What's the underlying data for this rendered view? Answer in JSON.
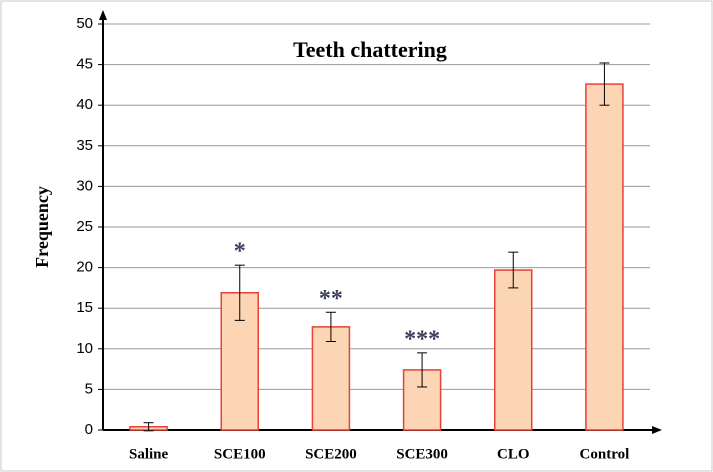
{
  "chart_data": {
    "type": "bar",
    "title": "Teeth chattering",
    "ylabel": "Frequency",
    "categories": [
      "Saline",
      "SCE100",
      "SCE200",
      "SCE300",
      "CLO",
      "Control"
    ],
    "values": [
      0.4,
      16.9,
      12.7,
      7.4,
      19.7,
      42.6
    ],
    "errors": [
      0.5,
      3.4,
      1.8,
      2.1,
      2.2,
      2.6
    ],
    "color": "#fcd5b5",
    "edgecolor": "#e8413a",
    "annotations": [
      {
        "category": "SCE100",
        "text": "*"
      },
      {
        "category": "SCE200",
        "text": "**"
      },
      {
        "category": "SCE300",
        "text": "***"
      }
    ],
    "ylim": [
      0,
      50
    ],
    "yticks": [
      0,
      5,
      10,
      15,
      20,
      25,
      30,
      35,
      40,
      45,
      50
    ],
    "grid": true
  }
}
